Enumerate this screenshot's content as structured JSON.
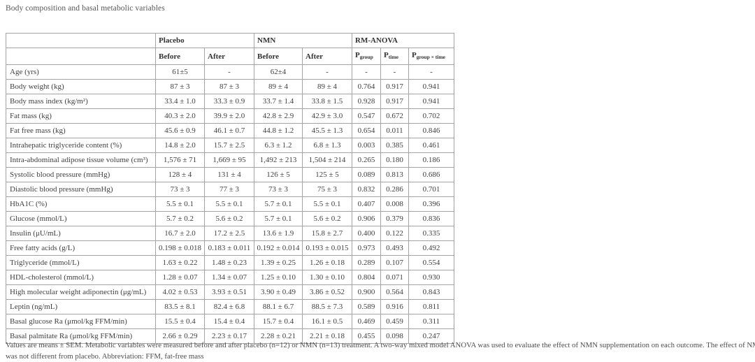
{
  "page_title": "Body composition and basal metabolic variables",
  "table": {
    "group_headers": [
      {
        "label": "",
        "colspan": 1
      },
      {
        "label": "Placebo",
        "colspan": 2
      },
      {
        "label": "NMN",
        "colspan": 2
      },
      {
        "label": "RM-ANOVA",
        "colspan": 3
      }
    ],
    "column_headers": [
      {
        "text": ""
      },
      {
        "text": "Before"
      },
      {
        "text": "After"
      },
      {
        "text": "Before"
      },
      {
        "text": "After"
      },
      {
        "text": "P",
        "sub": "group"
      },
      {
        "text": "P",
        "sub": "time"
      },
      {
        "text": "P",
        "sub": "group × time"
      }
    ],
    "rows": [
      {
        "label": "Age (yrs)",
        "values": [
          "61±5",
          "-",
          "62±4",
          "-",
          "-",
          "-",
          "-"
        ]
      },
      {
        "label": "Body weight (kg)",
        "values": [
          "87 ± 3",
          "87 ± 3",
          "89 ± 4",
          "89 ± 4",
          "0.764",
          "0.917",
          "0.941"
        ]
      },
      {
        "label": "Body mass index (kg/m²)",
        "values": [
          "33.4 ± 1.0",
          "33.3 ± 0.9",
          "33.7 ± 1.4",
          "33.8 ± 1.5",
          "0.928",
          "0.917",
          "0.941"
        ]
      },
      {
        "label": "Fat mass (kg)",
        "values": [
          "40.3 ± 2.0",
          "39.9 ± 2.0",
          "42.8 ± 2.9",
          "42.9 ± 3.0",
          "0.547",
          "0.672",
          "0.702"
        ]
      },
      {
        "label": "Fat free mass (kg)",
        "values": [
          "45.6 ± 0.9",
          "46.1 ± 0.7",
          "44.8 ± 1.2",
          "45.5 ± 1.3",
          "0.654",
          "0.011",
          "0.846"
        ]
      },
      {
        "label": "Intrahepatic triglyceride content (%)",
        "values": [
          "14.8 ± 2.0",
          "15.7 ± 2.5",
          "6.3 ± 1.2",
          "6.8 ± 1.3",
          "0.003",
          "0.385",
          "0.461"
        ]
      },
      {
        "label": "Intra-abdominal adipose tissue volume (cm³)",
        "values": [
          "1,576 ± 71",
          "1,669 ± 95",
          "1,492 ± 213",
          "1,504 ± 214",
          "0.265",
          "0.180",
          "0.186"
        ]
      },
      {
        "label": "Systolic blood pressure (mmHg)",
        "values": [
          "128 ± 4",
          "131 ± 4",
          "126 ± 5",
          "125 ± 5",
          "0.089",
          "0.813",
          "0.686"
        ]
      },
      {
        "label": "Diastolic blood pressure (mmHg)",
        "values": [
          "73 ± 3",
          "77 ± 3",
          "73 ± 3",
          "75 ± 3",
          "0.832",
          "0.286",
          "0.701"
        ]
      },
      {
        "label": "HbA1C (%)",
        "values": [
          "5.5 ± 0.1",
          "5.5 ± 0.1",
          "5.7 ± 0.1",
          "5.5 ± 0.1",
          "0.407",
          "0.008",
          "0.396"
        ]
      },
      {
        "label": "Glucose (mmol/L)",
        "values": [
          "5.7 ± 0.2",
          "5.6 ± 0.2",
          "5.7 ± 0.1",
          "5.6 ± 0.2",
          "0.906",
          "0.379",
          "0.836"
        ]
      },
      {
        "label": "Insulin (μU/mL)",
        "values": [
          "16.7 ± 2.0",
          "17.2 ± 2.5",
          "13.6 ± 1.9",
          "15.8 ± 2.7",
          "0.400",
          "0.122",
          "0.335"
        ]
      },
      {
        "label": "Free fatty acids (g/L)",
        "values": [
          "0.198 ± 0.018",
          "0.183 ± 0.011",
          "0.192 ± 0.014",
          "0.193 ± 0.015",
          "0.973",
          "0.493",
          "0.492"
        ]
      },
      {
        "label": "Triglyceride (mmol/L)",
        "values": [
          "1.63 ± 0.22",
          "1.48 ± 0.23",
          "1.39 ± 0.25",
          "1.26 ± 0.18",
          "0.289",
          "0.107",
          "0.554"
        ]
      },
      {
        "label": "HDL-cholesterol (mmol/L)",
        "values": [
          "1.28 ± 0.07",
          "1.34 ± 0.07",
          "1.25 ± 0.10",
          "1.30 ± 0.10",
          "0.804",
          "0.071",
          "0.930"
        ]
      },
      {
        "label": "High molecular weight adiponectin (μg/mL)",
        "values": [
          "4.02 ± 0.53",
          "3.93 ± 0.51",
          "3.90 ± 0.49",
          "3.86 ± 0.52",
          "0.900",
          "0.564",
          "0.843"
        ]
      },
      {
        "label": "Leptin (ng/mL)",
        "values": [
          "83.5 ± 8.1",
          "82.4 ± 6.8",
          "88.1 ± 6.7",
          "88.5 ± 7.3",
          "0.589",
          "0.916",
          "0.811"
        ]
      },
      {
        "label": "Basal glucose Ra (μmol/kg FFM/min)",
        "values": [
          "15.5 ± 0.4",
          "15.4 ± 0.4",
          "15.7 ± 0.4",
          "16.1 ± 0.5",
          "0.469",
          "0.459",
          "0.311"
        ]
      },
      {
        "label": "Basal palmitate Ra (μmol/kg FFM/min)",
        "values": [
          "2.66 ± 0.29",
          "2.23 ± 0.17",
          "2.28 ± 0.21",
          "2.21 ± 0.18",
          "0.455",
          "0.098",
          "0.247"
        ]
      }
    ]
  },
  "footnote_lines": [
    "Values are means ± SEM. Metabolic variables were measured before and after placebo (n=12) or NMN (n=13) treatment. A two-way mixed model ANOVA was used to evaluate the effect of NMN supplementation on each outcome. The effect of NMN on these variables",
    "was not different from placebo. Abbreviation: FFM, fat-free mass"
  ]
}
